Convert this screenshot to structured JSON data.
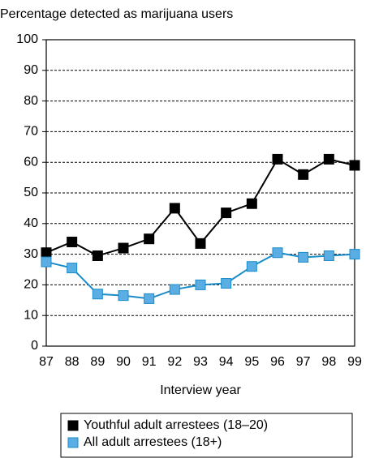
{
  "chart_data": {
    "type": "line",
    "y_axis_label": "Percentage detected as marijuana users",
    "x_axis_label": "Interview year",
    "categories": [
      "87",
      "88",
      "89",
      "90",
      "91",
      "92",
      "93",
      "94",
      "95",
      "96",
      "97",
      "98",
      "99"
    ],
    "series": [
      {
        "name": "Youthful adult arrestees (18–20)",
        "color": "#000000",
        "marker_fill": "#000000",
        "values": [
          30.5,
          34,
          29.5,
          32,
          35,
          45,
          33.5,
          43.5,
          46.5,
          61,
          56,
          61,
          59
        ]
      },
      {
        "name": "All adult arrestees (18+)",
        "color": "#1a8cc8",
        "marker_fill": "#5aaee3",
        "values": [
          27.5,
          25.5,
          17,
          16.5,
          15.5,
          18.5,
          20,
          20.5,
          26,
          30.5,
          29,
          29.5,
          30
        ]
      }
    ],
    "ylim": [
      0,
      100
    ],
    "yticks": [
      0,
      10,
      20,
      30,
      40,
      50,
      60,
      70,
      80,
      90,
      100
    ],
    "grid": true
  }
}
